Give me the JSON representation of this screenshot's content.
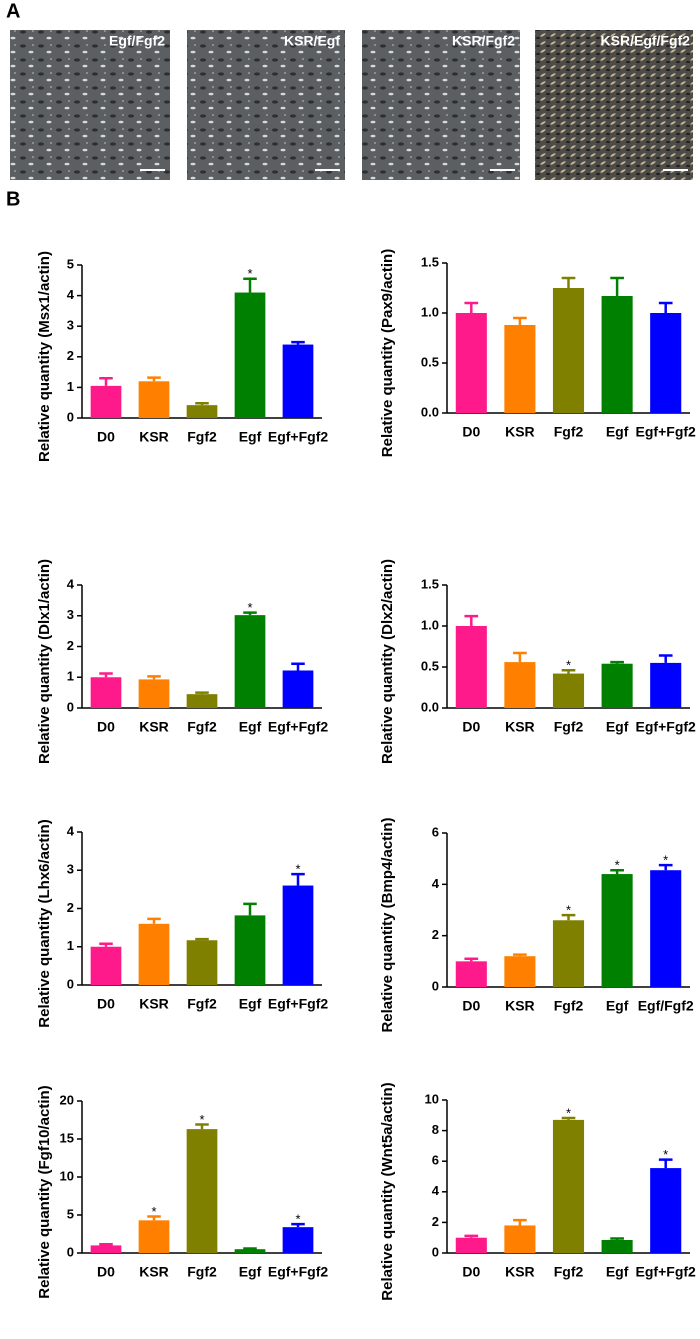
{
  "panel_a": {
    "label": "A",
    "images": [
      "Egf/Fgf2",
      "KSR/Egf",
      "KSR/Fgf2",
      "KSR/Egf/Fgf2"
    ]
  },
  "panel_b": {
    "label": "B"
  },
  "chart_data": [
    {
      "type": "bar",
      "ylabel": "Relative quantity (Msx1/actin)",
      "categories": [
        "D0",
        "KSR",
        "Fgf2",
        "Egf",
        "Egf+Fgf2"
      ],
      "values": [
        1.05,
        1.2,
        0.42,
        4.1,
        2.4
      ],
      "errors": [
        0.25,
        0.12,
        0.06,
        0.45,
        0.08
      ],
      "colors": [
        "#ff1a8c",
        "#ff8000",
        "#808000",
        "#008000",
        "#0000ff"
      ],
      "ylim": [
        0,
        5
      ],
      "yticks": [
        0,
        1,
        2,
        3,
        4,
        5
      ],
      "annotations": [
        {
          "category": "Egf",
          "text": "*"
        }
      ]
    },
    {
      "type": "bar",
      "ylabel": "Relative quantity (Pax9/actin)",
      "categories": [
        "D0",
        "KSR",
        "Fgf2",
        "Egf",
        "Egf+Fgf2"
      ],
      "values": [
        1.0,
        0.88,
        1.25,
        1.17,
        1.0
      ],
      "errors": [
        0.1,
        0.07,
        0.1,
        0.18,
        0.1
      ],
      "colors": [
        "#ff1a8c",
        "#ff8000",
        "#808000",
        "#008000",
        "#0000ff"
      ],
      "ylim": [
        0,
        1.5
      ],
      "yticks": [
        {
          "value": 0,
          "label": "0.0"
        },
        0.5,
        {
          "value": 1,
          "label": "1.0"
        },
        1.5
      ],
      "annotations": []
    },
    {
      "type": "bar",
      "ylabel": "Relative quantity (Dlx1/actin)",
      "categories": [
        "D0",
        "KSR",
        "Fgf2",
        "Egf",
        "Egf+Fgf2"
      ],
      "values": [
        1.0,
        0.93,
        0.45,
        3.02,
        1.22
      ],
      "errors": [
        0.12,
        0.1,
        0.05,
        0.08,
        0.22
      ],
      "colors": [
        "#ff1a8c",
        "#ff8000",
        "#808000",
        "#008000",
        "#0000ff"
      ],
      "ylim": [
        0,
        4
      ],
      "yticks": [
        0,
        1,
        2,
        3,
        4
      ],
      "annotations": [
        {
          "category": "Egf",
          "text": "*"
        }
      ]
    },
    {
      "type": "bar",
      "ylabel": "Relative quantity (Dlx2/actin)",
      "categories": [
        "D0",
        "KSR",
        "Fgf2",
        "Egf",
        "Egf+Fgf2"
      ],
      "values": [
        1.0,
        0.56,
        0.42,
        0.54,
        0.55
      ],
      "errors": [
        0.12,
        0.11,
        0.04,
        0.02,
        0.09
      ],
      "colors": [
        "#ff1a8c",
        "#ff8000",
        "#808000",
        "#008000",
        "#0000ff"
      ],
      "ylim": [
        0,
        1.5
      ],
      "yticks": [
        {
          "value": 0,
          "label": "0.0"
        },
        0.5,
        {
          "value": 1,
          "label": "1.0"
        },
        1.5
      ],
      "annotations": [
        {
          "category": "Fgf2",
          "text": "*"
        }
      ]
    },
    {
      "type": "bar",
      "ylabel": "Relative quantity (Lhx6/actin)",
      "categories": [
        "D0",
        "KSR",
        "Fgf2",
        "Egf",
        "Egf+Fgf2"
      ],
      "values": [
        1.0,
        1.6,
        1.17,
        1.82,
        2.6
      ],
      "errors": [
        0.08,
        0.13,
        0.03,
        0.3,
        0.3
      ],
      "colors": [
        "#ff1a8c",
        "#ff8000",
        "#808000",
        "#008000",
        "#0000ff"
      ],
      "ylim": [
        0,
        4
      ],
      "yticks": [
        0,
        1,
        2,
        3,
        4
      ],
      "annotations": [
        {
          "category": "Egf+Fgf2",
          "text": "*"
        }
      ]
    },
    {
      "type": "bar",
      "ylabel": "Relative quantity (Bmp4/actin)",
      "categories": [
        "D0",
        "KSR",
        "Fgf2",
        "Egf",
        "Egf/Fgf2"
      ],
      "values": [
        1.0,
        1.2,
        2.6,
        4.4,
        4.55
      ],
      "errors": [
        0.1,
        0.06,
        0.2,
        0.15,
        0.2
      ],
      "colors": [
        "#ff1a8c",
        "#ff8000",
        "#808000",
        "#008000",
        "#0000ff"
      ],
      "ylim": [
        0,
        6
      ],
      "yticks": [
        0,
        2,
        4,
        6
      ],
      "annotations": [
        {
          "category": "Fgf2",
          "text": "*"
        },
        {
          "category": "Egf",
          "text": "*"
        },
        {
          "category": "Egf/Fgf2",
          "text": "*"
        }
      ]
    },
    {
      "type": "bar",
      "ylabel": "Relative quantity (Fgf10/actin)",
      "categories": [
        "D0",
        "KSR",
        "Fgf2",
        "Egf",
        "Egf+Fgf2"
      ],
      "values": [
        1.0,
        4.3,
        16.3,
        0.5,
        3.4
      ],
      "errors": [
        0.15,
        0.5,
        0.6,
        0.1,
        0.4
      ],
      "colors": [
        "#ff1a8c",
        "#ff8000",
        "#808000",
        "#008000",
        "#0000ff"
      ],
      "ylim": [
        0,
        20
      ],
      "yticks": [
        0,
        5,
        10,
        15,
        20
      ],
      "annotations": [
        {
          "category": "KSR",
          "text": "*"
        },
        {
          "category": "Fgf2",
          "text": "*"
        },
        {
          "category": "Egf+Fgf2",
          "text": "*"
        }
      ]
    },
    {
      "type": "bar",
      "ylabel": "Relative quantity (Wnt5a/actin)",
      "categories": [
        "D0",
        "KSR",
        "Fgf2",
        "Egf",
        "Egf+Fgf2"
      ],
      "values": [
        1.0,
        1.8,
        8.7,
        0.85,
        5.55
      ],
      "errors": [
        0.12,
        0.35,
        0.12,
        0.1,
        0.55
      ],
      "colors": [
        "#ff1a8c",
        "#ff8000",
        "#808000",
        "#008000",
        "#0000ff"
      ],
      "ylim": [
        0,
        10
      ],
      "yticks": [
        0,
        2,
        4,
        6,
        8,
        10
      ],
      "annotations": [
        {
          "category": "Fgf2",
          "text": "*"
        },
        {
          "category": "Egf+Fgf2",
          "text": "*"
        }
      ]
    }
  ]
}
